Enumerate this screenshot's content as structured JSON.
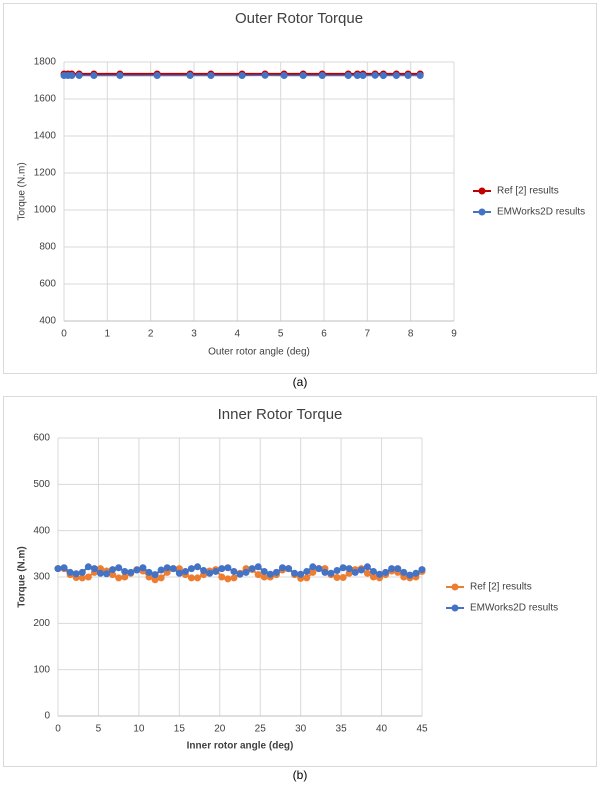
{
  "chart_data": [
    {
      "type": "line",
      "title": "Outer Rotor Torque",
      "caption": "(a)",
      "x_label": "Outer rotor angle (deg)",
      "y_label": "Torque (N.m)",
      "x": [
        0,
        0.09,
        0.18,
        0.35,
        0.69,
        1.29,
        2.15,
        2.91,
        3.39,
        4.11,
        4.64,
        5.08,
        5.52,
        5.96,
        6.56,
        6.77,
        6.9,
        7.18,
        7.37,
        7.67,
        7.94,
        8.22
      ],
      "series": [
        {
          "name": "Ref [2] results",
          "color": "#c00000",
          "values": [
            1735,
            1735,
            1735,
            1735,
            1735,
            1735,
            1735,
            1735,
            1735,
            1735,
            1735,
            1735,
            1735,
            1735,
            1735,
            1735,
            1735,
            1735,
            1735,
            1735,
            1735,
            1735
          ]
        },
        {
          "name": "EMWorks2D results",
          "color": "#4472c4",
          "values": [
            1727,
            1727,
            1727,
            1727,
            1727,
            1727,
            1727,
            1727,
            1727,
            1727,
            1728,
            1727,
            1727,
            1727,
            1727,
            1727,
            1727,
            1728,
            1727,
            1727,
            1727,
            1727
          ]
        }
      ],
      "xlim": [
        0,
        9
      ],
      "xticks": [
        0,
        1,
        2,
        3,
        4,
        5,
        6,
        7,
        8,
        9
      ],
      "ylim": [
        400,
        1800
      ],
      "yticks": [
        400,
        600,
        800,
        1000,
        1200,
        1400,
        1600,
        1800
      ],
      "grid": true,
      "legend": "right"
    },
    {
      "type": "line",
      "title": "Inner Rotor Torque",
      "caption": "(b)",
      "x_label": "Inner rotor angle (deg)",
      "y_label": "Torque (N.m)",
      "x": [
        0,
        0.75,
        1.5,
        2.25,
        3,
        3.75,
        4.5,
        5.25,
        6,
        6.75,
        7.5,
        8.25,
        9,
        9.75,
        10.5,
        11.25,
        12,
        12.75,
        13.5,
        14.25,
        15,
        15.75,
        16.5,
        17.25,
        18,
        18.75,
        19.5,
        20.25,
        21,
        21.75,
        22.5,
        23.25,
        24,
        24.75,
        25.5,
        26.25,
        27,
        27.75,
        28.5,
        29.25,
        30,
        30.75,
        31.5,
        32.25,
        33,
        33.75,
        34.5,
        35.25,
        36,
        36.75,
        37.5,
        38.25,
        39,
        39.75,
        40.5,
        41.25,
        42,
        42.75,
        43.5,
        44.25,
        45
      ],
      "series": [
        {
          "name": "Ref [2] results",
          "color": "#ed7d31",
          "values": [
            318,
            318,
            305,
            299,
            298,
            300,
            310,
            318,
            313,
            305,
            298,
            300,
            308,
            316,
            313,
            300,
            294,
            298,
            310,
            318,
            318,
            305,
            298,
            298,
            305,
            313,
            316,
            300,
            296,
            298,
            308,
            318,
            316,
            305,
            300,
            300,
            305,
            315,
            318,
            305,
            297,
            298,
            310,
            318,
            318,
            305,
            299,
            299,
            308,
            316,
            318,
            308,
            300,
            298,
            305,
            313,
            310,
            300,
            298,
            300,
            312
          ]
        },
        {
          "name": "EMWorks2D results",
          "color": "#4472c4",
          "values": [
            318,
            320,
            310,
            307,
            310,
            322,
            318,
            308,
            307,
            316,
            320,
            312,
            310,
            315,
            320,
            310,
            305,
            315,
            320,
            318,
            308,
            312,
            318,
            322,
            314,
            308,
            312,
            318,
            320,
            312,
            306,
            310,
            318,
            322,
            312,
            306,
            310,
            320,
            318,
            308,
            306,
            312,
            322,
            318,
            310,
            308,
            314,
            320,
            318,
            310,
            315,
            322,
            312,
            306,
            310,
            318,
            318,
            310,
            304,
            308,
            316
          ]
        }
      ],
      "xlim": [
        0,
        45
      ],
      "xticks": [
        0,
        5,
        10,
        15,
        20,
        25,
        30,
        35,
        40,
        45
      ],
      "ylim": [
        0,
        600
      ],
      "yticks": [
        0,
        100,
        200,
        300,
        400,
        500,
        600
      ],
      "grid": true,
      "legend": "right"
    }
  ]
}
